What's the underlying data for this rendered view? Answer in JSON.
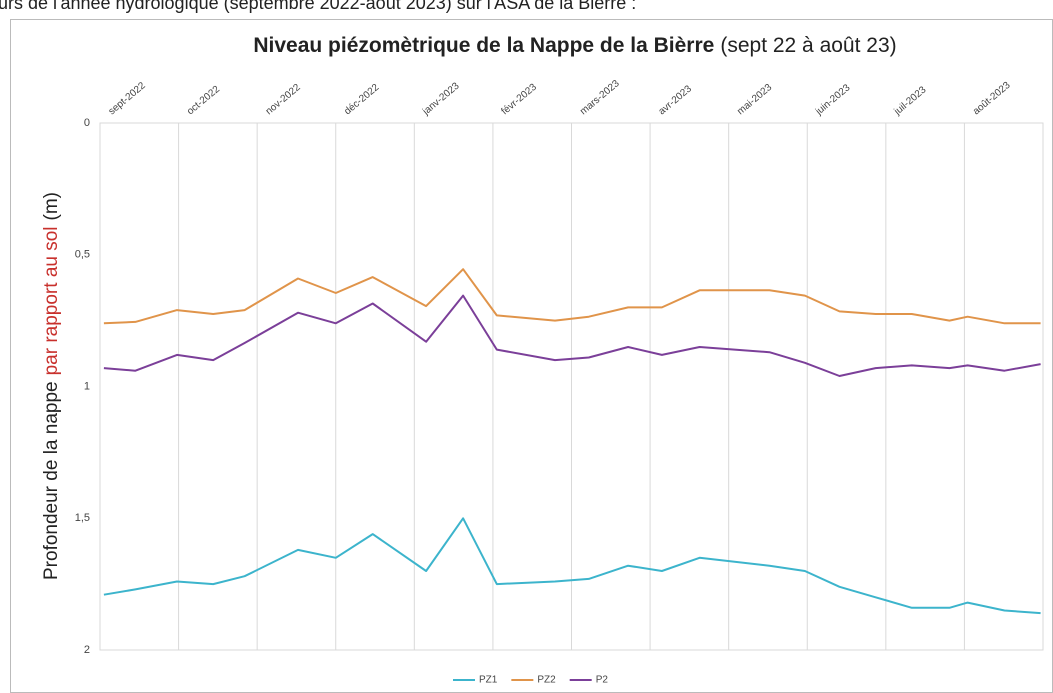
{
  "caption": "urs de l'année hydrologique (septembre 2022-août 2023) sur l'ASA de la Bièrre :",
  "chart_data": {
    "type": "line",
    "title": "Niveau piézomètrique de la Nappe de la Bièrre",
    "subtitle": "(sept 22 à août 23)",
    "ylabel": [
      "Profondeur de la nappe",
      "par rapport au sol",
      "(m)"
    ],
    "ylabel_highlight_color": "#c8302c",
    "y_inverted": true,
    "grid": "x",
    "legend": "bottom",
    "xlim": [
      0,
      12
    ],
    "xticks": [
      {
        "value": 0,
        "label": "sept-2022"
      },
      {
        "value": 1,
        "label": "oct-2022"
      },
      {
        "value": 2,
        "label": "nov-2022"
      },
      {
        "value": 3,
        "label": "déc-2022"
      },
      {
        "value": 4,
        "label": "janv-2023"
      },
      {
        "value": 5,
        "label": "févr-2023"
      },
      {
        "value": 6,
        "label": "mars-2023"
      },
      {
        "value": 7,
        "label": "avr-2023"
      },
      {
        "value": 8,
        "label": "mai-2023"
      },
      {
        "value": 9,
        "label": "juin-2023"
      },
      {
        "value": 10,
        "label": "juil-2023"
      },
      {
        "value": 11,
        "label": "août-2023"
      }
    ],
    "ylim": [
      0,
      2
    ],
    "yticks": [
      0,
      {
        "value": 0.5,
        "label": "0,5"
      },
      1,
      {
        "value": 1.5,
        "label": "1,5"
      },
      2
    ],
    "x": [
      0.05,
      0.45,
      0.98,
      1.44,
      1.84,
      2.52,
      3.0,
      3.47,
      4.15,
      4.62,
      5.05,
      5.79,
      6.22,
      6.72,
      7.15,
      7.63,
      8.52,
      8.97,
      9.41,
      9.87,
      10.33,
      10.81,
      11.04,
      11.51,
      11.97
    ],
    "series": [
      {
        "name": "PZ1",
        "color": "#3cb4cc",
        "values": [
          1.79,
          1.77,
          1.74,
          1.75,
          1.72,
          1.62,
          1.65,
          1.56,
          1.7,
          1.5,
          1.75,
          1.74,
          1.73,
          1.68,
          1.7,
          1.65,
          1.68,
          1.7,
          1.76,
          1.8,
          1.84,
          1.84,
          1.82,
          1.85,
          1.86
        ]
      },
      {
        "name": "PZ2",
        "color": "#e0944a",
        "values": [
          0.76,
          0.755,
          0.71,
          0.725,
          0.71,
          0.59,
          0.645,
          0.585,
          0.695,
          0.555,
          0.73,
          0.75,
          0.735,
          0.7,
          0.7,
          0.635,
          0.635,
          0.655,
          0.715,
          0.725,
          0.725,
          0.75,
          0.735,
          0.76,
          0.76
        ]
      },
      {
        "name": "P2",
        "color": "#7b3f99",
        "values": [
          0.93,
          0.94,
          0.88,
          0.9,
          0.835,
          0.72,
          0.76,
          0.685,
          0.83,
          0.655,
          0.86,
          0.9,
          0.89,
          0.85,
          0.88,
          0.85,
          0.87,
          0.91,
          0.96,
          0.93,
          0.92,
          0.93,
          0.92,
          0.94,
          0.915
        ]
      }
    ]
  }
}
